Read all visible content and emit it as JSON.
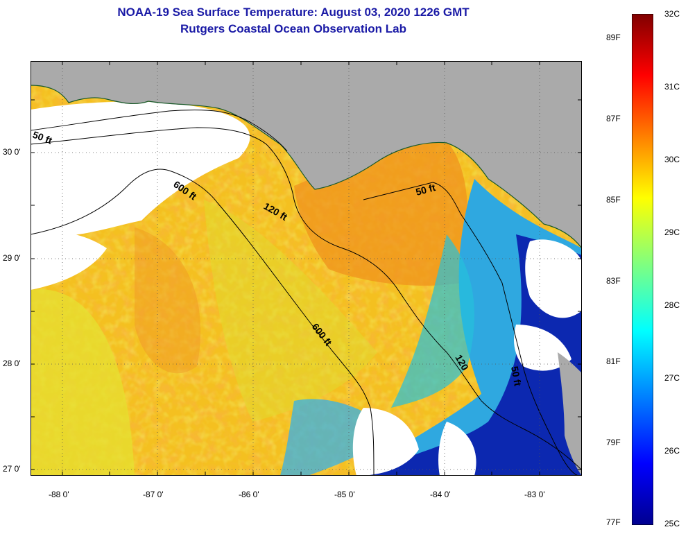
{
  "title": {
    "line1": "NOAA-19 Sea Surface Temperature:  August 03, 2020 1226 GMT",
    "line2": "Rutgers Coastal Ocean Observation Lab"
  },
  "map": {
    "lon_ticks": [
      "-88 0'",
      "-87 0'",
      "-86 0'",
      "-85 0'",
      "-84 0'",
      "-83 0'"
    ],
    "lat_ticks": [
      "30 0'",
      "29 0'",
      "28 0'",
      "27 0'"
    ],
    "contours": [
      "50 ft",
      "600 ft",
      "120 ft",
      "50 ft",
      "600 ft",
      "120",
      "50 ft"
    ],
    "colors": {
      "land": "#aaaaaa",
      "cloud": "#ffffff",
      "warm": "#f4b614",
      "orange": "#f08a1a",
      "yellow": "#e8e02a",
      "cold": "#0a1fa8",
      "cyan": "#25c8d8"
    }
  },
  "colorbar": {
    "celsius": [
      "32C",
      "31C",
      "30C",
      "29C",
      "28C",
      "27C",
      "26C",
      "25C"
    ],
    "fahrenheit": [
      "89F",
      "87F",
      "85F",
      "83F",
      "81F",
      "79F",
      "77F"
    ]
  }
}
